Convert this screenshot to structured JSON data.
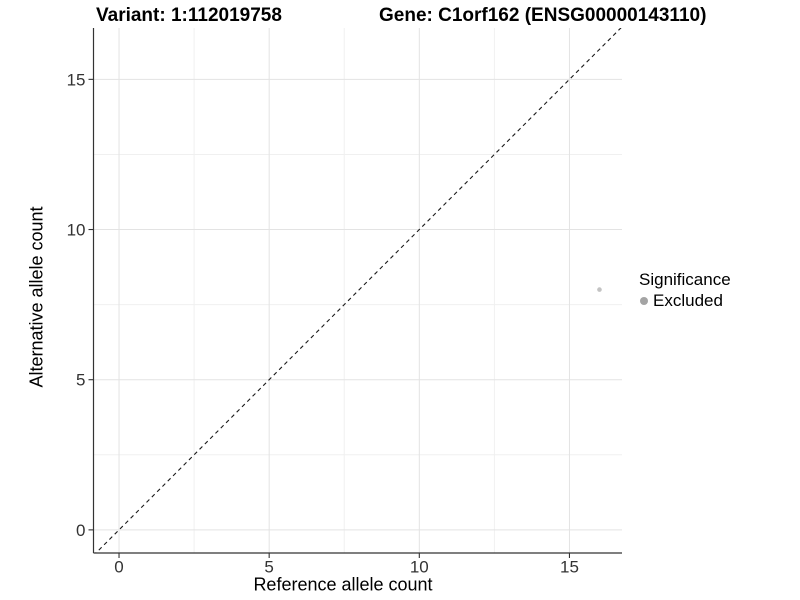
{
  "titles": {
    "variant": "Variant: 1:112019758",
    "gene": "Gene: C1orf162 (ENSG00000143110)"
  },
  "chart_data": {
    "type": "scatter",
    "title": "Variant: 1:112019758  /  Gene: C1orf162 (ENSG00000143110)",
    "xlabel": "Reference allele count",
    "ylabel": "Alternative allele count",
    "xlim": [
      -0.85,
      16.75
    ],
    "ylim": [
      -0.77,
      16.71
    ],
    "x_ticks": [
      0,
      5,
      10,
      15
    ],
    "y_ticks": [
      0,
      5,
      10,
      15
    ],
    "x_minor_ticks": [
      2.5,
      7.5,
      12.5
    ],
    "y_minor_ticks": [
      2.5,
      7.5,
      12.5
    ],
    "grid": true,
    "points": [
      {
        "x": 16,
        "y": 8,
        "series": "Excluded"
      }
    ],
    "reference_line": {
      "slope": 1,
      "intercept": 0,
      "style": "dashed"
    },
    "legend": {
      "title": "Significance",
      "position": "right",
      "items": [
        {
          "label": "Excluded",
          "color": "#a4a4a4"
        }
      ]
    }
  },
  "colors": {
    "background": "#ffffff",
    "grid_major": "#e3e3e3",
    "grid_minor": "#f0f0f0",
    "axis_line": "#333333",
    "tick_label": "#333333",
    "reference_line": "#1a1a1a",
    "point_fill": "#c3c3c3",
    "legend_key": "#a4a4a4"
  }
}
